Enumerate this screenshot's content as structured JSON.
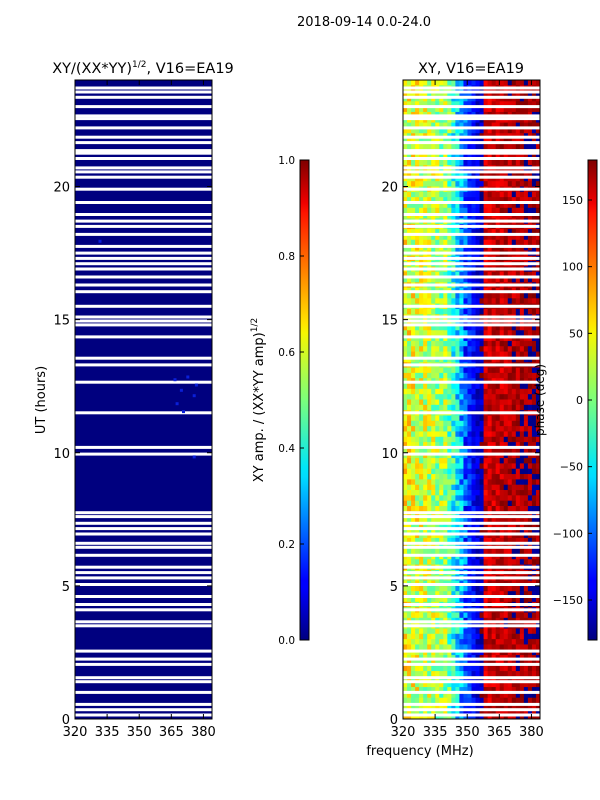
{
  "figure": {
    "suptitle": "2018-09-14 0.0-24.0",
    "xlabel_shared": "frequency (MHz)"
  },
  "chart_data": [
    {
      "type": "heatmap",
      "title_main": "XY/(XX*YY)",
      "title_sup": "1/2",
      "title_rest": ", V16=EA19",
      "ylabel": "UT (hours)",
      "xlim": [
        320,
        384
      ],
      "ylim": [
        0,
        24
      ],
      "xticks": [
        "320",
        "335",
        "350",
        "365",
        "380"
      ],
      "xtick_values": [
        320,
        335,
        350,
        365,
        380
      ],
      "yticks": [
        "0",
        "5",
        "10",
        "15",
        "20"
      ],
      "ytick_values": [
        0,
        5,
        10,
        15,
        20
      ],
      "colormap": "jet",
      "value_description": "normalized XY amplitude, nearly uniform ~0 with flagged (white) time rows",
      "colorbar": {
        "label_main": "XY amp. / (XX*YY amp)",
        "label_sup": "1/2",
        "range": [
          0.0,
          1.0
        ],
        "ticks": [
          "0.0",
          "0.2",
          "0.4",
          "0.6",
          "0.8",
          "1.0"
        ],
        "tick_values": [
          0.0,
          0.2,
          0.4,
          0.6,
          0.8,
          1.0
        ]
      }
    },
    {
      "type": "heatmap",
      "title": "XY, V16=EA19",
      "xlim": [
        320,
        384
      ],
      "ylim": [
        0,
        24
      ],
      "xticks": [
        "320",
        "335",
        "350",
        "365",
        "380"
      ],
      "xtick_values": [
        320,
        335,
        350,
        365,
        380
      ],
      "yticks": [
        "0",
        "5",
        "10",
        "15",
        "20"
      ],
      "ytick_values": [
        0,
        5,
        10,
        15,
        20
      ],
      "colormap": "jet",
      "value_description": "XY phase, ~30 deg near 320 MHz wrapping through -150 deg near 350 MHz to ~170 deg above 360 MHz",
      "colorbar": {
        "label": "phase (deg)",
        "range": [
          -180,
          180
        ],
        "ticks": [
          "−150",
          "−100",
          "−50",
          "0",
          "50",
          "100",
          "150"
        ],
        "tick_values": [
          -150,
          -100,
          -50,
          0,
          50,
          100,
          150
        ]
      }
    }
  ],
  "flagged_hours": [
    0.15,
    0.35,
    0.55,
    1.0,
    1.4,
    1.55,
    2.05,
    2.25,
    2.55,
    3.5,
    3.65,
    4.1,
    4.3,
    4.6,
    5.05,
    5.3,
    5.5,
    5.7,
    6.15,
    6.45,
    6.6,
    6.95,
    7.15,
    7.35,
    7.6,
    7.75,
    9.95,
    10.2,
    11.5,
    12.65,
    13.3,
    13.55,
    14.35,
    14.8,
    14.95,
    15.1,
    15.5,
    16.05,
    16.3,
    16.6,
    16.9,
    17.1,
    17.3,
    17.5,
    17.75,
    18.2,
    18.5,
    18.7,
    18.95,
    19.4,
    19.9,
    20.35,
    20.55,
    20.7,
    21.05,
    21.25,
    21.35,
    21.65,
    21.85,
    22.2,
    22.55,
    22.65,
    23.0,
    23.35,
    23.55,
    23.7
  ]
}
